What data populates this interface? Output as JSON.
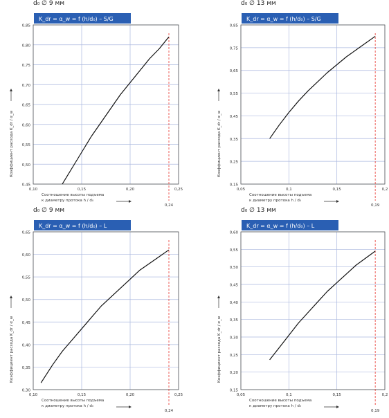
{
  "charts": [
    {
      "heading": "d₀ ∅ 9 мм",
      "title": "K_dr = α_w = f (h/d₀) – S/G",
      "xlabel_line1": "Соотношение высоты подъема",
      "xlabel_line2": "к диаметру протока h / d₀",
      "ylabel": "Коэффициент расхода K_dr / α_w",
      "marker_label": "0,24"
    },
    {
      "heading": "d₀ ∅ 13 мм",
      "title": "K_dr = α_w = f (h/d₀) – S/G",
      "xlabel_line1": "Соотношение высоты подъема",
      "xlabel_line2": "к диаметру протока h / d₀",
      "ylabel": "Коэффициент расхода K_dr / α_w",
      "marker_label": "0,19"
    },
    {
      "heading": "d₀ ∅ 9 мм",
      "title": "K_dr = α_w = f (h/d₀) – L",
      "xlabel_line1": "Соотношение высоты подъема",
      "xlabel_line2": "к диаметру протока h / d₀",
      "ylabel": "Коэффициент расхода K_dr / α_w",
      "marker_label": "0,24"
    },
    {
      "heading": "d₀ ∅ 13 мм",
      "title": "K_dr = α_w = f (h/d₀) – L",
      "xlabel_line1": "Соотношение высоты подъема",
      "xlabel_line2": "к диаметру протока h / d₀",
      "ylabel": "Коэффициент расхода K_dr / α_w",
      "marker_label": "0,19"
    }
  ],
  "chart_data": [
    {
      "type": "line",
      "title": "K_dr = α_w = f (h/d₀) – S/G",
      "xlim": [
        0.1,
        0.25
      ],
      "ylim": [
        0.45,
        0.85
      ],
      "xticks": [
        "0,10",
        "0,15",
        "0,20",
        "0,25"
      ],
      "yticks": [
        "0,45",
        "0,50",
        "0,55",
        "0,60",
        "0,65",
        "0,70",
        "0,75",
        "0,80",
        "0,85"
      ],
      "x": [
        0.13,
        0.14,
        0.15,
        0.16,
        0.17,
        0.18,
        0.19,
        0.2,
        0.21,
        0.22,
        0.23,
        0.24
      ],
      "y": [
        0.45,
        0.49,
        0.53,
        0.57,
        0.605,
        0.64,
        0.675,
        0.705,
        0.735,
        0.765,
        0.79,
        0.82
      ],
      "marker_x": 0.24,
      "grid": true
    },
    {
      "type": "line",
      "title": "K_dr = α_w = f (h/d₀) – S/G",
      "xlim": [
        0.05,
        0.2
      ],
      "ylim": [
        0.15,
        0.85
      ],
      "xticks": [
        "0,05",
        "0,1",
        "0,15",
        "0,2"
      ],
      "yticks": [
        "0,15",
        "0,25",
        "0,35",
        "0,45",
        "0,55",
        "0,65",
        "0,75",
        "0,85"
      ],
      "x": [
        0.08,
        0.09,
        0.1,
        0.11,
        0.12,
        0.13,
        0.14,
        0.15,
        0.16,
        0.17,
        0.18,
        0.19
      ],
      "y": [
        0.35,
        0.41,
        0.465,
        0.515,
        0.56,
        0.6,
        0.64,
        0.675,
        0.71,
        0.74,
        0.77,
        0.8
      ],
      "marker_x": 0.19,
      "grid": true
    },
    {
      "type": "line",
      "title": "K_dr = α_w = f (h/d₀) – L",
      "xlim": [
        0.1,
        0.25
      ],
      "ylim": [
        0.3,
        0.65
      ],
      "xticks": [
        "0,10",
        "0,15",
        "0,20",
        "0,25"
      ],
      "yticks": [
        "0,30",
        "0,35",
        "0,40",
        "0,45",
        "0,50",
        "0,55",
        "0,60",
        "0,65"
      ],
      "x": [
        0.108,
        0.12,
        0.13,
        0.14,
        0.15,
        0.16,
        0.17,
        0.18,
        0.19,
        0.2,
        0.21,
        0.22,
        0.23,
        0.24
      ],
      "y": [
        0.315,
        0.355,
        0.385,
        0.41,
        0.435,
        0.46,
        0.485,
        0.505,
        0.525,
        0.545,
        0.565,
        0.58,
        0.595,
        0.61
      ],
      "marker_x": 0.24,
      "grid": true
    },
    {
      "type": "line",
      "title": "K_dr = α_w = f (h/d₀) – L",
      "xlim": [
        0.05,
        0.2
      ],
      "ylim": [
        0.15,
        0.6
      ],
      "xticks": [
        "0,05",
        "0,1",
        "0,15",
        "0,2"
      ],
      "yticks": [
        "0,15",
        "0,20",
        "0,25",
        "0,30",
        "0,35",
        "0,40",
        "0,45",
        "0,50",
        "0,55",
        "0,60"
      ],
      "x": [
        0.08,
        0.09,
        0.1,
        0.11,
        0.12,
        0.13,
        0.14,
        0.15,
        0.16,
        0.17,
        0.18,
        0.19
      ],
      "y": [
        0.235,
        0.27,
        0.305,
        0.34,
        0.37,
        0.4,
        0.43,
        0.455,
        0.48,
        0.505,
        0.525,
        0.545
      ],
      "marker_x": 0.19,
      "grid": true
    }
  ]
}
